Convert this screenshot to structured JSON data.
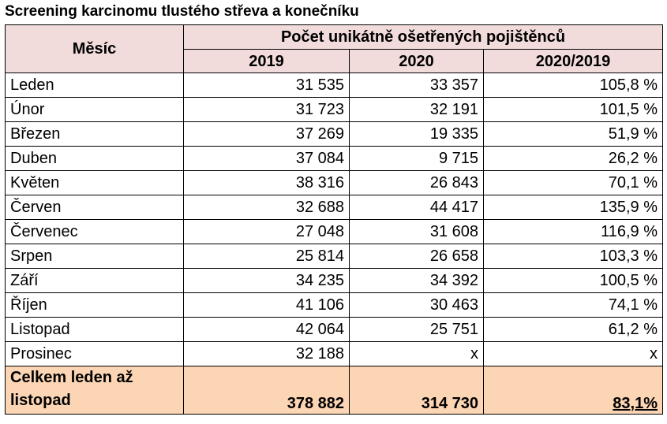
{
  "title": "Screening karcinomu tlustého střeva a konečníku",
  "table": {
    "headers": {
      "month": "Měsíc",
      "group": "Počet unikátně ošetřených pojištěnců",
      "col_2019": "2019",
      "col_2020": "2020",
      "col_ratio": "2020/2019"
    },
    "rows": [
      {
        "month": "Leden",
        "y2019": "31 535",
        "y2020": "33 357",
        "ratio": "105,8 %"
      },
      {
        "month": "Únor",
        "y2019": "31 723",
        "y2020": "32 191",
        "ratio": "101,5 %"
      },
      {
        "month": "Březen",
        "y2019": "37 269",
        "y2020": "19 335",
        "ratio": "51,9 %"
      },
      {
        "month": "Duben",
        "y2019": "37 084",
        "y2020": "9 715",
        "ratio": "26,2 %"
      },
      {
        "month": "Květen",
        "y2019": "38 316",
        "y2020": "26 843",
        "ratio": "70,1 %"
      },
      {
        "month": "Červen",
        "y2019": "32 688",
        "y2020": "44 417",
        "ratio": "135,9 %"
      },
      {
        "month": "Červenec",
        "y2019": "27 048",
        "y2020": "31 608",
        "ratio": "116,9 %"
      },
      {
        "month": "Srpen",
        "y2019": "25 814",
        "y2020": "26 658",
        "ratio": "103,3 %"
      },
      {
        "month": "Září",
        "y2019": "34 235",
        "y2020": "34 392",
        "ratio": "100,5 %"
      },
      {
        "month": "Říjen",
        "y2019": "41 106",
        "y2020": "30 463",
        "ratio": "74,1 %"
      },
      {
        "month": "Listopad",
        "y2019": "42 064",
        "y2020": "25 751",
        "ratio": "61,2 %"
      },
      {
        "month": "Prosinec",
        "y2019": "32 188",
        "y2020": "x",
        "ratio": "x"
      }
    ],
    "total": {
      "label": "Celkem leden až listopad",
      "y2019": "378 882",
      "y2020": "314 730",
      "ratio": "83,1%"
    }
  },
  "colors": {
    "header_bg": "#f2dcdb",
    "total_bg": "#fcd5b4",
    "border": "#000000"
  }
}
